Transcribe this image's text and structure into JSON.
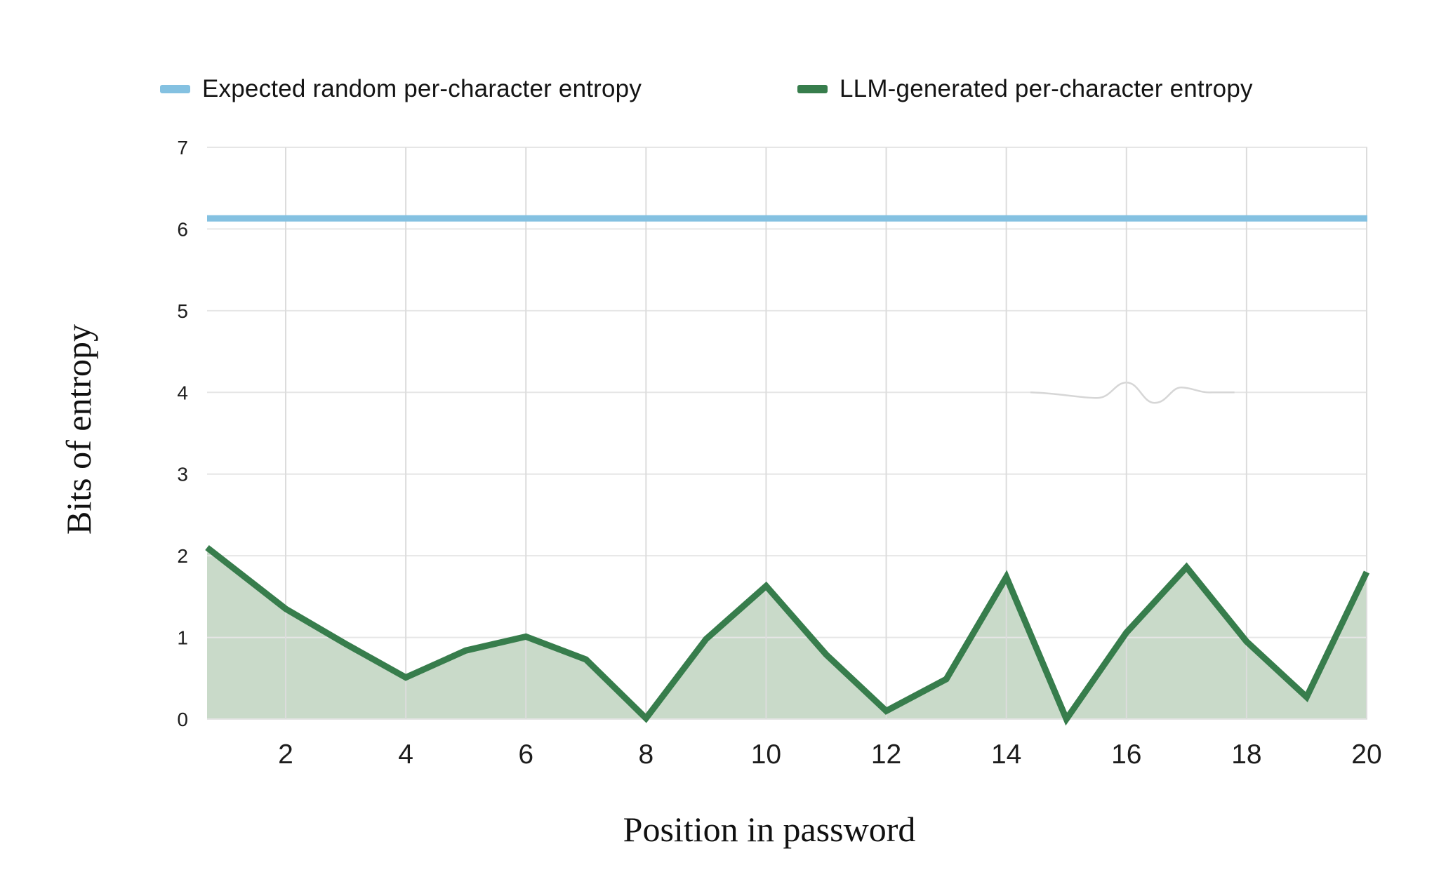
{
  "legend": {
    "items": [
      {
        "label": "Expected random per-character entropy",
        "color": "#84c1e1"
      },
      {
        "label": "LLM-generated per-character entropy",
        "color": "#377d4c"
      }
    ]
  },
  "chart_data": {
    "type": "line",
    "title": "",
    "xlabel": "Position in password",
    "ylabel": "Bits of entropy",
    "x": [
      1,
      2,
      3,
      4,
      5,
      6,
      7,
      8,
      9,
      10,
      11,
      12,
      13,
      14,
      15,
      16,
      17,
      18,
      19,
      20
    ],
    "x_ticks": [
      2,
      4,
      6,
      8,
      10,
      12,
      14,
      16,
      18,
      20
    ],
    "y_ticks": [
      0,
      1,
      2,
      3,
      4,
      5,
      6,
      7
    ],
    "xlim": [
      0.7,
      20.05
    ],
    "ylim": [
      0,
      7
    ],
    "grid": true,
    "legend_position": "top",
    "series": [
      {
        "name": "Expected random per-character entropy",
        "type": "hline",
        "value": 6.13,
        "color": "#84c1e1"
      },
      {
        "name": "LLM-generated per-character entropy",
        "type": "area-line",
        "color": "#377d4c",
        "fill": "#c9dac9",
        "values": [
          2.1,
          1.35,
          0.92,
          0.51,
          0.84,
          1.01,
          0.73,
          0.01,
          0.98,
          1.63,
          0.79,
          0.1,
          0.49,
          1.74,
          0.0,
          1.06,
          1.86,
          0.95,
          0.27,
          1.8
        ]
      }
    ],
    "annotations": [
      {
        "type": "gridline-squiggle",
        "y": 4,
        "x_start": 14.4,
        "x_end": 17.8
      }
    ]
  }
}
